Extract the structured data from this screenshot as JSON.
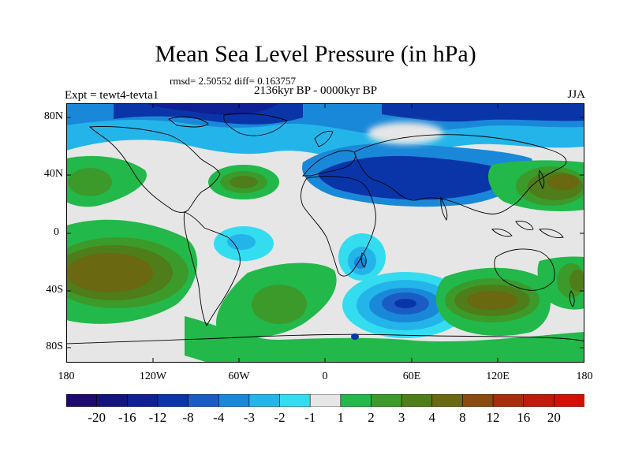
{
  "title": "Mean Sea Level Pressure (in hPa)",
  "stats": "rmsd= 2.50552 diff= 0.163757",
  "period": "2136kyr BP - 0000kyr BP",
  "experiment": "Expt = tewt4-tevta1",
  "season": "JJA",
  "lat_ticks": [
    "80N",
    "40N",
    "0",
    "40S",
    "80S"
  ],
  "lon_ticks": [
    "180",
    "120W",
    "60W",
    "0",
    "60E",
    "120E",
    "180"
  ],
  "colorbar": {
    "labels": [
      "-20",
      "-16",
      "-12",
      "-8",
      "-4",
      "-3",
      "-2",
      "-1",
      "1",
      "2",
      "3",
      "4",
      "8",
      "12",
      "16",
      "20"
    ],
    "colors": [
      "#1e0a6e",
      "#14147f",
      "#0f1f94",
      "#0a35a8",
      "#1a5cc4",
      "#1a88d8",
      "#23b5ea",
      "#34dcf0",
      "#e6e6e6",
      "#22b84a",
      "#3c9a2a",
      "#4f7d1a",
      "#6a6810",
      "#8a4a10",
      "#a62c0c",
      "#c01a08",
      "#d41006"
    ]
  }
}
